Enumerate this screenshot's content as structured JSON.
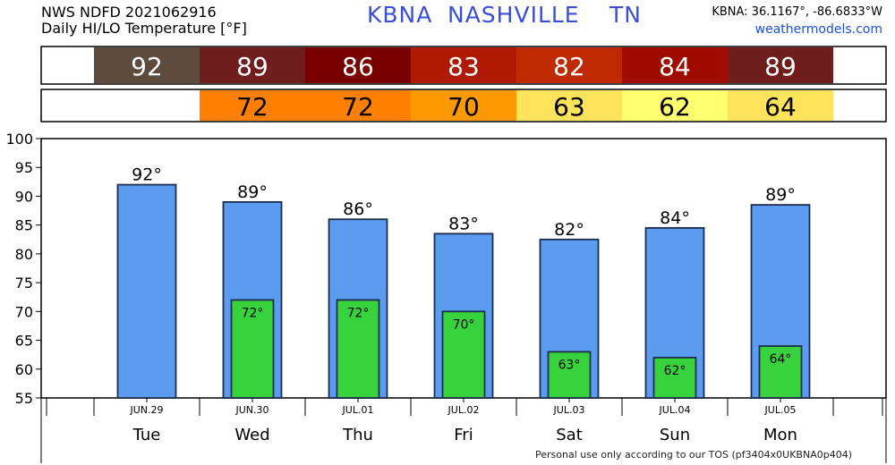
{
  "header": {
    "line1": "NWS NDFD 2021062916",
    "line2": "Daily HI/LO Temperature [°F]",
    "station_id": "KBNA",
    "station_name": "NASHVILLE",
    "state": "TN",
    "coords": "KBNA: 36.1167°, -86.6833°W",
    "site": "weathermodels.com"
  },
  "footer": {
    "tos": "Personal use only according to our TOS (pf3404x0UKBNA0p404)"
  },
  "strips": {
    "hi_colors": [
      "#5f4a3e",
      "#6f1d1d",
      "#7a0000",
      "#b01a05",
      "#c02a00",
      "#a00b00",
      "#6f1d1d"
    ],
    "lo_colors": [
      "#ff8000",
      "#ff8000",
      "#ff9900",
      "#ffe35a",
      "#ffff70",
      "#ffe35a"
    ],
    "hi_text_color": "#ffffff",
    "lo_text_color": "#000000"
  },
  "chart_data": {
    "type": "bar",
    "categories": [
      "Tue",
      "Wed",
      "Thu",
      "Fri",
      "Sat",
      "Sun",
      "Mon"
    ],
    "dates": [
      "JUN.29",
      "JUN.30",
      "JUL.01",
      "JUL.02",
      "JUL.03",
      "JUL.04",
      "JUL.05"
    ],
    "series": [
      {
        "values": [
          92,
          89,
          86,
          83.5,
          82.5,
          84.5,
          88.5
        ],
        "labels": [
          "92°",
          "89°",
          "86°",
          "83°",
          "82°",
          "84°",
          "89°"
        ],
        "color": "#5b9cf0"
      },
      {
        "values": [
          null,
          72,
          72,
          70,
          63,
          62,
          64
        ],
        "labels": [
          "",
          "72°",
          "72°",
          "70°",
          "63°",
          "62°",
          "64°"
        ],
        "color": "#38d23c"
      }
    ],
    "ylim": [
      55,
      100
    ],
    "yticks": [
      55,
      60,
      65,
      70,
      75,
      80,
      85,
      90,
      95,
      100
    ],
    "grid": false
  }
}
